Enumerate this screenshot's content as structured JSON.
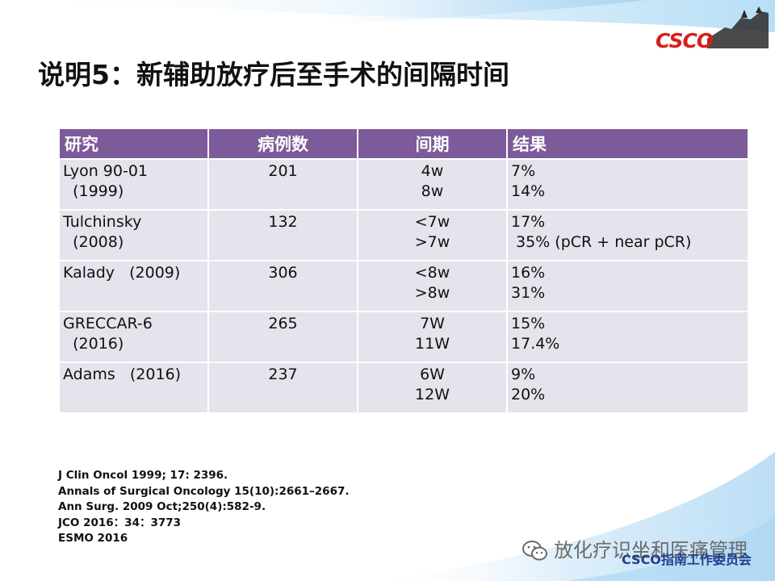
{
  "slide": {
    "title": "说明5：新辅助放疗后至手术的间隔时间",
    "logo_text": "CSCO",
    "brand_color": "#d81e1e",
    "header_color": "#7d5a99",
    "cell_color": "#e6e3ed"
  },
  "table": {
    "headers": [
      "研究",
      "病例数",
      "间期",
      "结果"
    ],
    "rows": [
      {
        "study": [
          "Lyon 90-01",
          "  (1999)"
        ],
        "cases": "201",
        "interval": [
          "4w",
          "8w"
        ],
        "result": [
          "7%",
          "14%"
        ]
      },
      {
        "study": [
          "Tulchinsky",
          "  (2008)"
        ],
        "cases": "132",
        "interval": [
          "<7w",
          ">7w"
        ],
        "result": [
          "17%",
          " 35% (pCR + near pCR)"
        ]
      },
      {
        "study": [
          "Kalady   (2009)"
        ],
        "cases": "306",
        "interval": [
          "<8w",
          ">8w"
        ],
        "result": [
          "16%",
          "31%"
        ]
      },
      {
        "study": [
          "GRECCAR-6",
          "  (2016)"
        ],
        "cases": "265",
        "interval": [
          "7W",
          "11W"
        ],
        "result": [
          "15%",
          "17.4%"
        ]
      },
      {
        "study": [
          "Adams   (2016)"
        ],
        "cases": "237",
        "interval": [
          "6W",
          "12W"
        ],
        "result": [
          "9%",
          "20%"
        ]
      }
    ]
  },
  "references": [
    "J Clin Oncol 1999; 17: 2396.",
    "Annals of Surgical Oncology 15(10):2661–2667.",
    "Ann Surg. 2009 Oct;250(4):582-9.",
    "JCO 2016：34：3773",
    "ESMO 2016"
  ],
  "footer": {
    "watermark": "放化疗识坐和医痛管理",
    "committee": "CSCO指南工作委员会",
    "icon": "wechat-icon"
  }
}
